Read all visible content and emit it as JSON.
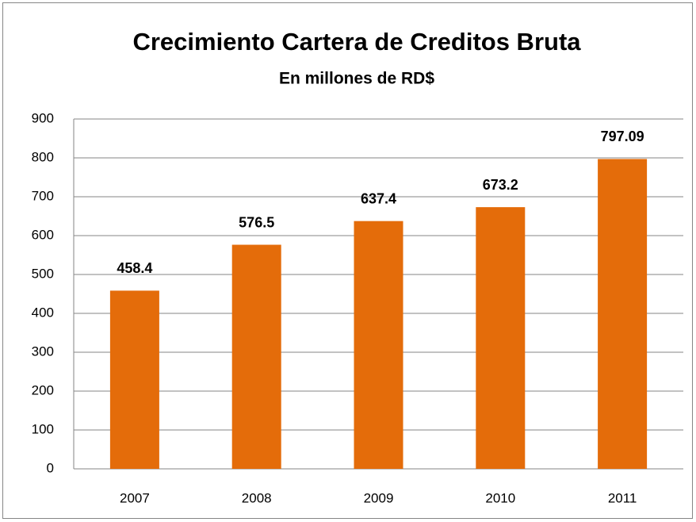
{
  "chart_data": {
    "type": "bar",
    "title": "Crecimiento Cartera de Creditos Bruta",
    "subtitle": "En millones de RD$",
    "categories": [
      "2007",
      "2008",
      "2009",
      "2010",
      "2011"
    ],
    "values": [
      458.4,
      576.5,
      637.4,
      673.2,
      797.09
    ],
    "color": "#e46c0a",
    "ylim": [
      0,
      900
    ],
    "yticks": [
      0,
      100,
      200,
      300,
      400,
      500,
      600,
      700,
      800,
      900
    ],
    "grid": true
  }
}
